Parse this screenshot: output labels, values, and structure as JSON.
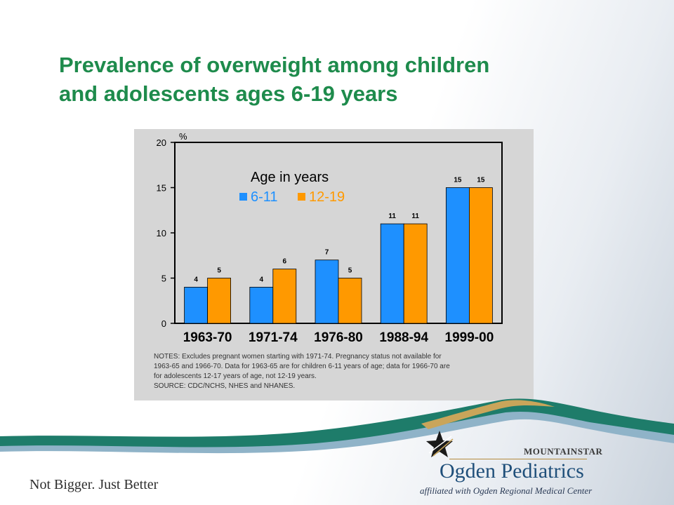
{
  "slide": {
    "title_line1": "Prevalence of overweight among children",
    "title_line2": "and adolescents ages 6-19 years",
    "tagline": "Not Bigger. Just Better"
  },
  "logo": {
    "brand_top": "MOUNTAINSTAR",
    "brand_main": "Ogden Pediatrics",
    "brand_sub": "affiliated with Ogden Regional Medical Center"
  },
  "notes": [
    "NOTES: Excludes pregnant women starting with 1971-74.  Pregnancy status not available for",
    "1963-65 and 1966-70. Data for 1963-65 are for children 6-11 years of age; data for 1966-70 are",
    "for adolescents 12-17 years of age, not 12-19 years.",
    "SOURCE: CDC/NCHS, NHES and NHANES."
  ],
  "colors": {
    "title_green": "#1e8b4c",
    "series_6_11": "#1e90ff",
    "series_12_19": "#ff9900",
    "chart_bg": "#d6d6d6"
  },
  "chart_data": {
    "type": "bar",
    "categories": [
      "1963-70",
      "1971-74",
      "1976-80",
      "1988-94",
      "1999-00"
    ],
    "series": [
      {
        "name": "6-11",
        "values": [
          4,
          4,
          7,
          11,
          15
        ]
      },
      {
        "name": "12-19",
        "values": [
          5,
          6,
          5,
          11,
          15
        ]
      }
    ],
    "data_labels": [
      [
        "4",
        "4",
        "7",
        "11",
        "15"
      ],
      [
        "5",
        "6",
        "5",
        "11",
        "15"
      ]
    ],
    "ylabel": "%",
    "ylim": [
      0,
      20
    ],
    "yticks": [
      "0",
      "5",
      "10",
      "15",
      "20"
    ],
    "legend_title": "Age in years",
    "legend_position": "top-left",
    "grid": false
  }
}
